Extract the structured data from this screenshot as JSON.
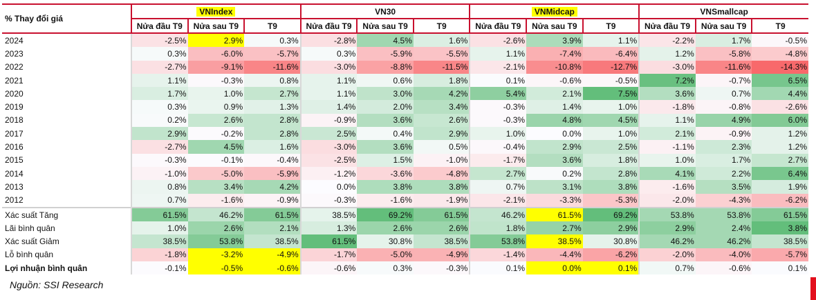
{
  "table": {
    "corner_label": "% Thay đổi giá",
    "groups": [
      "VNIndex",
      "VN30",
      "VNMidcap",
      "VNSmallcap"
    ],
    "subheaders": [
      "Nửa đầu T9",
      "Nửa sau T9",
      "T9"
    ],
    "year_rows": [
      {
        "label": "2024",
        "values": [
          "-2.5%",
          "2.9%",
          "0.3%",
          "-2.8%",
          "4.5%",
          "1.6%",
          "-2.6%",
          "3.9%",
          "1.1%",
          "-2.2%",
          "1.7%",
          "-0.5%"
        ]
      },
      {
        "label": "2023",
        "values": [
          "0.3%",
          "-6.0%",
          "-5.7%",
          "0.3%",
          "-5.9%",
          "-5.5%",
          "1.1%",
          "-7.4%",
          "-6.4%",
          "1.2%",
          "-5.8%",
          "-4.8%"
        ]
      },
      {
        "label": "2022",
        "values": [
          "-2.7%",
          "-9.1%",
          "-11.6%",
          "-3.0%",
          "-8.8%",
          "-11.5%",
          "-2.1%",
          "-10.8%",
          "-12.7%",
          "-3.0%",
          "-11.6%",
          "-14.3%"
        ]
      },
      {
        "label": "2021",
        "values": [
          "1.1%",
          "-0.3%",
          "0.8%",
          "1.1%",
          "0.6%",
          "1.8%",
          "0.1%",
          "-0.6%",
          "-0.5%",
          "7.2%",
          "-0.7%",
          "6.5%"
        ]
      },
      {
        "label": "2020",
        "values": [
          "1.7%",
          "1.0%",
          "2.7%",
          "1.1%",
          "3.0%",
          "4.2%",
          "5.4%",
          "2.1%",
          "7.5%",
          "3.6%",
          "0.7%",
          "4.4%"
        ]
      },
      {
        "label": "2019",
        "values": [
          "0.3%",
          "0.9%",
          "1.3%",
          "1.4%",
          "2.0%",
          "3.4%",
          "-0.3%",
          "1.4%",
          "1.0%",
          "-1.8%",
          "-0.8%",
          "-2.6%"
        ]
      },
      {
        "label": "2018",
        "values": [
          "0.2%",
          "2.6%",
          "2.8%",
          "-0.9%",
          "3.6%",
          "2.6%",
          "-0.3%",
          "4.8%",
          "4.5%",
          "1.1%",
          "4.9%",
          "6.0%"
        ]
      },
      {
        "label": "2017",
        "values": [
          "2.9%",
          "-0.2%",
          "2.8%",
          "2.5%",
          "0.4%",
          "2.9%",
          "1.0%",
          "0.0%",
          "1.0%",
          "2.1%",
          "-0.9%",
          "1.2%"
        ]
      },
      {
        "label": "2016",
        "values": [
          "-2.7%",
          "4.5%",
          "1.6%",
          "-3.0%",
          "3.6%",
          "0.5%",
          "-0.4%",
          "2.9%",
          "2.5%",
          "-1.1%",
          "2.3%",
          "1.2%"
        ]
      },
      {
        "label": "2015",
        "values": [
          "-0.3%",
          "-0.1%",
          "-0.4%",
          "-2.5%",
          "1.5%",
          "-1.0%",
          "-1.7%",
          "3.6%",
          "1.8%",
          "1.0%",
          "1.7%",
          "2.7%"
        ]
      },
      {
        "label": "2014",
        "values": [
          "-1.0%",
          "-5.0%",
          "-5.9%",
          "-1.2%",
          "-3.6%",
          "-4.8%",
          "2.7%",
          "0.2%",
          "2.8%",
          "4.1%",
          "2.2%",
          "6.4%"
        ]
      },
      {
        "label": "2013",
        "values": [
          "0.8%",
          "3.4%",
          "4.2%",
          "0.0%",
          "3.8%",
          "3.8%",
          "0.7%",
          "3.1%",
          "3.8%",
          "-1.6%",
          "3.5%",
          "1.9%"
        ]
      },
      {
        "label": "2012",
        "values": [
          "0.7%",
          "-1.6%",
          "-0.9%",
          "-0.3%",
          "-1.6%",
          "-1.9%",
          "-2.1%",
          "-3.3%",
          "-5.3%",
          "-2.0%",
          "-4.3%",
          "-6.2%"
        ]
      }
    ],
    "summary_rows": [
      {
        "label": "Xác suất Tăng",
        "scale": "green",
        "values": [
          "61.5%",
          "46.2%",
          "61.5%",
          "38.5%",
          "69.2%",
          "61.5%",
          "46.2%",
          "61.5%",
          "69.2%",
          "53.8%",
          "53.8%",
          "61.5%"
        ]
      },
      {
        "label": "Lãi bình quân",
        "scale": "green",
        "values": [
          "1.0%",
          "2.6%",
          "2.1%",
          "1.3%",
          "2.6%",
          "2.6%",
          "1.8%",
          "2.7%",
          "2.9%",
          "2.9%",
          "2.4%",
          "3.8%"
        ]
      },
      {
        "label": "Xác suất Giảm",
        "scale": "green",
        "values": [
          "38.5%",
          "53.8%",
          "38.5%",
          "61.5%",
          "30.8%",
          "38.5%",
          "53.8%",
          "38.5%",
          "30.8%",
          "46.2%",
          "46.2%",
          "38.5%"
        ]
      },
      {
        "label": "Lỗ bình quân",
        "scale": "red",
        "values": [
          "-1.8%",
          "-3.2%",
          "-4.9%",
          "-1.7%",
          "-5.0%",
          "-4.9%",
          "-1.4%",
          "-4.4%",
          "-6.2%",
          "-2.0%",
          "-4.0%",
          "-5.7%"
        ]
      },
      {
        "label": "Lợi nhuận bình quân",
        "scale": "faint",
        "bold": true,
        "values": [
          "-0.1%",
          "-0.5%",
          "-0.6%",
          "-0.6%",
          "0.3%",
          "-0.3%",
          "0.1%",
          "0.0%",
          "0.1%",
          "0.7%",
          "-0.6%",
          "0.1%"
        ]
      }
    ],
    "highlighted_groups": [
      "VNIndex",
      "VNMidcap"
    ],
    "highlighted_cells": [
      {
        "row": "2024",
        "col": 1
      },
      {
        "row": "Xác suất Tăng",
        "col": 7
      },
      {
        "row": "Xác suất Giảm",
        "col": 7
      },
      {
        "row": "Lỗ bình quân",
        "col": 1
      },
      {
        "row": "Lỗ bình quân",
        "col": 2
      },
      {
        "row": "Lợi nhuận bình quân",
        "col": 1
      },
      {
        "row": "Lợi nhuận bình quân",
        "col": 2
      },
      {
        "row": "Lợi nhuận bình quân",
        "col": 7
      },
      {
        "row": "Lợi nhuận bình quân",
        "col": 8
      }
    ]
  },
  "source": "Nguồn: SSI Research",
  "colors": {
    "green": "#63be7b",
    "red": "#f8696b",
    "neutral": "#fcfcff",
    "highlight": "#ffff00",
    "border": "#c8102e"
  }
}
